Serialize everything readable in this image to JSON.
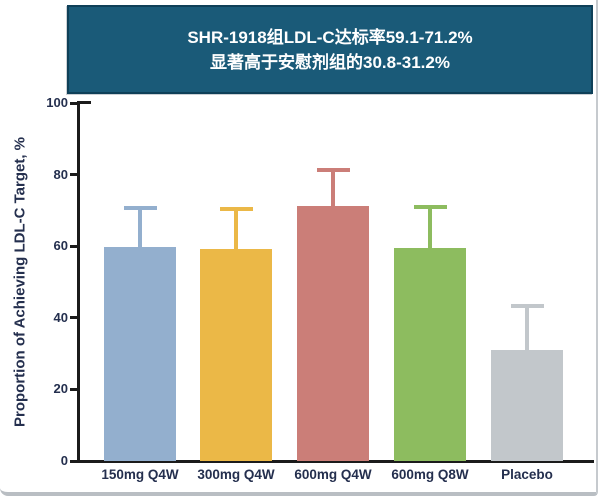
{
  "banner": {
    "line1": "SHR-1918组LDL-C达标率59.1-71.2%",
    "line2": "显著高于安慰剂组的30.8-31.2%",
    "bg_color": "#1A5A78",
    "border_color": "#0F4058",
    "text_color": "#FFFFFF"
  },
  "chart_data": {
    "type": "bar",
    "title": "",
    "xlabel": "",
    "ylabel": "Proportion of Achieving LDL-C Target, %",
    "ylim": [
      0,
      100
    ],
    "yticks": [
      0,
      20,
      40,
      60,
      80,
      100
    ],
    "grid": false,
    "legend_position": "none",
    "categories": [
      "150mg Q4W",
      "300mg Q4W",
      "600mg Q4W",
      "600mg Q8W",
      "Placebo"
    ],
    "series": [
      {
        "name": "Proportion achieving LDL-C target, %",
        "values": [
          59.7,
          59.1,
          71.2,
          59.6,
          31.0
        ],
        "error_high": [
          71.3,
          71.0,
          81.8,
          71.5,
          43.8
        ]
      }
    ],
    "bar_colors": [
      "#93AFCE",
      "#EBB847",
      "#CB7E78",
      "#8DBC5F",
      "#C2C7CB"
    ],
    "axis_color": "#1b1b1b",
    "label_color": "#242f4e"
  }
}
